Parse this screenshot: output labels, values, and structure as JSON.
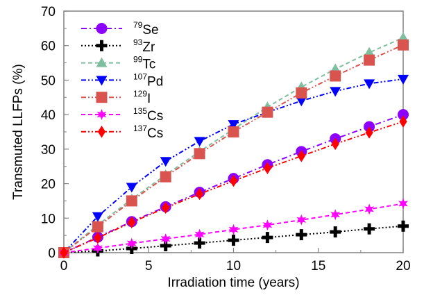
{
  "chart_data": {
    "type": "line",
    "title": "",
    "xlabel": "Irradiation time (years)",
    "ylabel": "Transmuted LLFPs (%)",
    "xlim": [
      0,
      20
    ],
    "ylim": [
      0,
      70
    ],
    "xticks": [
      0,
      5,
      10,
      15,
      20
    ],
    "yticks": [
      0,
      10,
      20,
      30,
      40,
      50,
      60,
      70
    ],
    "grid": false,
    "legend_position": "top-left",
    "x": [
      0,
      2,
      4,
      6,
      8,
      10,
      12,
      14,
      16,
      18,
      20
    ],
    "series": [
      {
        "name": "79Se",
        "mass": "79",
        "element": "Se",
        "color": "#8B00FF",
        "marker": "circle",
        "dash": "dashdot",
        "values": [
          0,
          4.5,
          9.0,
          13.3,
          17.5,
          21.5,
          25.5,
          29.3,
          33.0,
          36.5,
          40.0
        ]
      },
      {
        "name": "93Zr",
        "mass": "93",
        "element": "Zr",
        "color": "#000000",
        "marker": "plus",
        "dash": "dotted",
        "values": [
          0,
          0.5,
          1.2,
          2.0,
          2.8,
          3.6,
          4.4,
          5.2,
          6.0,
          6.9,
          7.7
        ]
      },
      {
        "name": "99Tc",
        "mass": "99",
        "element": "Tc",
        "color": "#7FBF9F",
        "marker": "triangle-up",
        "dash": "dashed",
        "values": [
          0,
          8.0,
          15.5,
          22.5,
          29.3,
          35.8,
          42.2,
          48.0,
          53.2,
          58.0,
          62.3
        ]
      },
      {
        "name": "107Pd",
        "mass": "107",
        "element": "Pd",
        "color": "#0000FF",
        "marker": "triangle-down",
        "dash": "dashdotdot",
        "values": [
          0,
          10.5,
          19.0,
          26.5,
          32.3,
          37.2,
          40.7,
          44.0,
          46.8,
          49.0,
          50.3
        ]
      },
      {
        "name": "129I",
        "mass": "129",
        "element": "I",
        "color": "#D9534F",
        "marker": "square",
        "dash": "dashdotdot",
        "values": [
          0,
          7.5,
          15.0,
          22.0,
          28.7,
          35.0,
          40.7,
          46.3,
          51.2,
          55.8,
          60.2
        ]
      },
      {
        "name": "135Cs",
        "mass": "135",
        "element": "Cs",
        "color": "#FF00FF",
        "marker": "star",
        "dash": "dashed",
        "values": [
          0,
          1.3,
          2.7,
          4.0,
          5.3,
          6.7,
          8.0,
          9.5,
          11.0,
          12.6,
          14.2
        ]
      },
      {
        "name": "137Cs",
        "mass": "137",
        "element": "Cs",
        "color": "#FF0000",
        "marker": "diamond",
        "dash": "dashdotdot",
        "values": [
          0,
          4.3,
          8.8,
          13.0,
          17.0,
          20.8,
          24.5,
          28.0,
          31.5,
          34.8,
          38.0
        ]
      }
    ]
  }
}
